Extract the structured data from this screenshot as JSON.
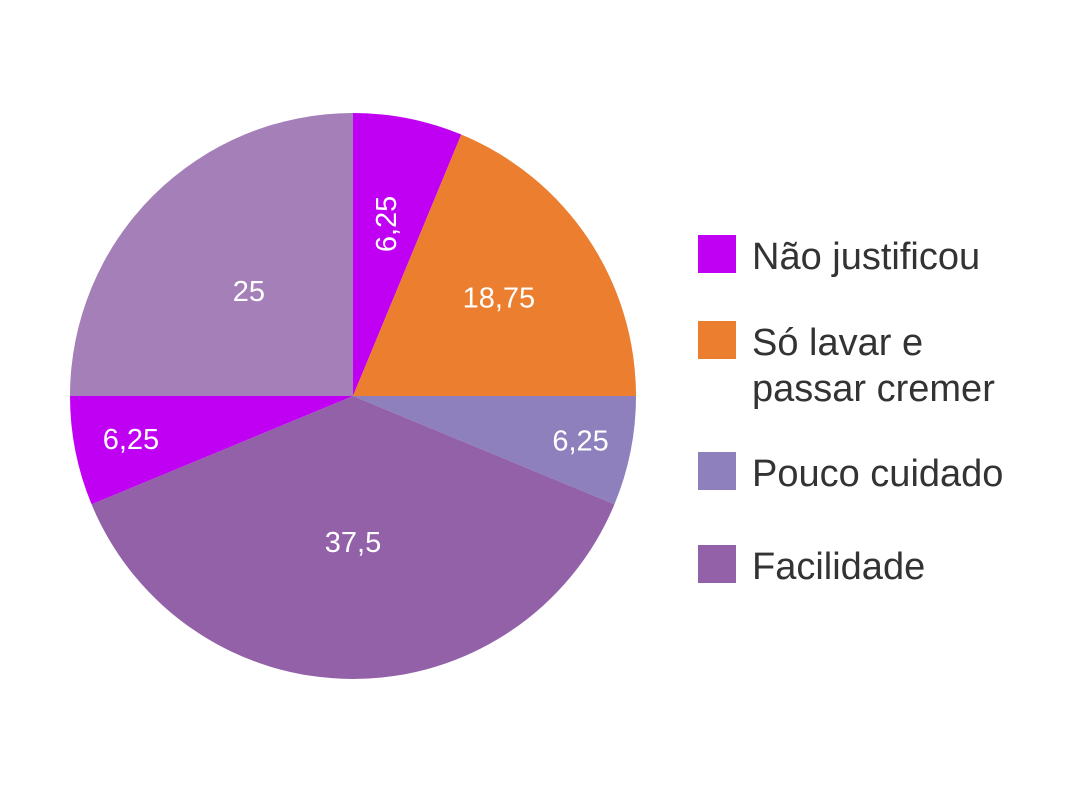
{
  "chart_data": {
    "type": "pie",
    "title": "",
    "slices": [
      {
        "label": "Não justificou",
        "value": 6.25,
        "display": "6,25",
        "color": "#C000F2",
        "legend_index": 0
      },
      {
        "label": "Só lavar e passar cremer",
        "value": 18.75,
        "display": "18,75",
        "color": "#EC7E30",
        "legend_index": 1
      },
      {
        "label": "Pouco cuidado",
        "value": 6.25,
        "display": "6,25",
        "color": "#8E80BC",
        "legend_index": 2
      },
      {
        "label": "Facilidade",
        "value": 37.5,
        "display": "37,5",
        "color": "#9261A8",
        "legend_index": 3
      },
      {
        "label": "Não justificou",
        "value": 6.25,
        "display": "6,25",
        "color": "#C000F2",
        "legend_index": 0
      },
      {
        "label": "",
        "value": 25,
        "display": "25",
        "color": "#A47FB8",
        "legend_index": null
      }
    ],
    "legend": {
      "placement": "right",
      "items": [
        {
          "label": "Não justificou",
          "color": "#C000F2"
        },
        {
          "label": "Só lavar e passar cremer",
          "color": "#EC7E30"
        },
        {
          "label": "Pouco cuidado",
          "color": "#8E80BC"
        },
        {
          "label": "Facilidade",
          "color": "#9261A8"
        }
      ]
    }
  }
}
